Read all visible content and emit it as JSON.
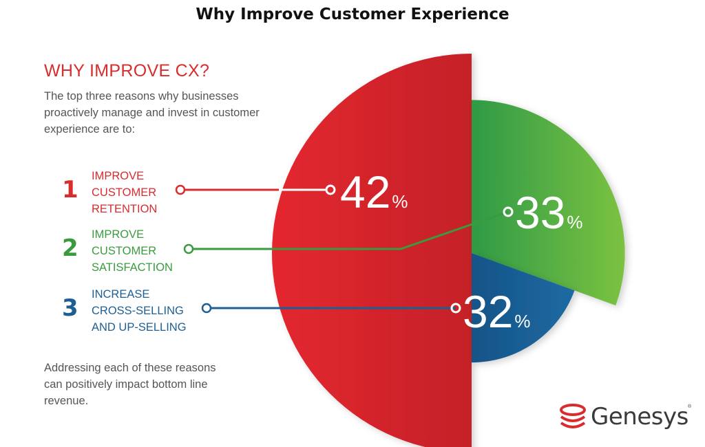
{
  "page": {
    "title": "Why Improve Customer Experience"
  },
  "left_panel": {
    "heading": "WHY IMPROVE CX?",
    "intro": "The top three reasons why businesses proactively manage and invest in customer experience are to:",
    "closing": "Addressing each of these reasons can positively impact bottom line revenue."
  },
  "reasons": [
    {
      "number": "1",
      "line1": "IMPROVE",
      "line2": "CUSTOMER",
      "line3": "RETENTION",
      "color": "#d82c2e"
    },
    {
      "number": "2",
      "line1": "IMPROVE",
      "line2": "CUSTOMER",
      "line3": "SATISFACTION",
      "color": "#3a9b3e"
    },
    {
      "number": "3",
      "line1": "INCREASE",
      "line2": "CROSS-SELLING",
      "line3": "AND UP-SELLING",
      "color": "#1d5f93"
    }
  ],
  "chart_data": {
    "type": "pie",
    "labels": [
      "IMPROVE CUSTOMER RETENTION",
      "IMPROVE CUSTOMER SATISFACTION",
      "INCREASE CROSS-SELLING AND UP-SELLING"
    ],
    "values": [
      42,
      33,
      32
    ],
    "value_labels": [
      "42",
      "33",
      "32"
    ],
    "unit": "%",
    "colors": [
      "#d82c2e",
      "#5ab148",
      "#1f6496"
    ]
  },
  "logo": {
    "text": "Genesys",
    "mark": "®",
    "colors": [
      "#d82c2e",
      "#3a3a3a"
    ]
  }
}
